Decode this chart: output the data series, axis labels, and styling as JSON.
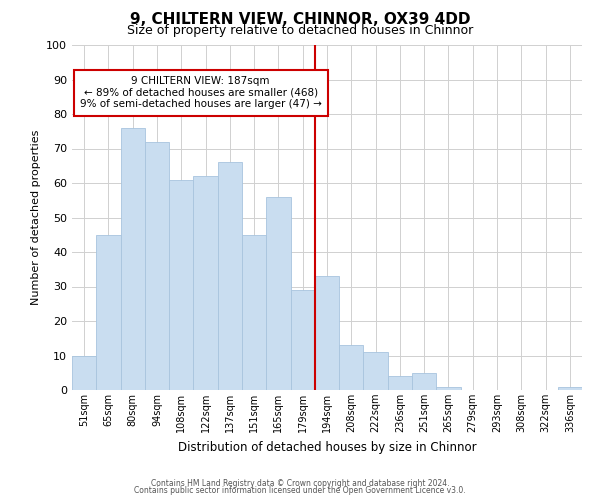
{
  "title": "9, CHILTERN VIEW, CHINNOR, OX39 4DD",
  "subtitle": "Size of property relative to detached houses in Chinnor",
  "xlabel": "Distribution of detached houses by size in Chinnor",
  "ylabel": "Number of detached properties",
  "categories": [
    "51sqm",
    "65sqm",
    "80sqm",
    "94sqm",
    "108sqm",
    "122sqm",
    "137sqm",
    "151sqm",
    "165sqm",
    "179sqm",
    "194sqm",
    "208sqm",
    "222sqm",
    "236sqm",
    "251sqm",
    "265sqm",
    "279sqm",
    "293sqm",
    "308sqm",
    "322sqm",
    "336sqm"
  ],
  "values": [
    10,
    45,
    76,
    72,
    61,
    62,
    66,
    45,
    56,
    29,
    33,
    13,
    11,
    4,
    5,
    1,
    0,
    0,
    0,
    0,
    1
  ],
  "bar_color": "#c9ddf0",
  "bar_edge_color": "#a8c4de",
  "vline_x_index": 9.5,
  "vline_color": "#cc0000",
  "annotation_title": "9 CHILTERN VIEW: 187sqm",
  "annotation_line1": "← 89% of detached houses are smaller (468)",
  "annotation_line2": "9% of semi-detached houses are larger (47) →",
  "annotation_box_color": "#ffffff",
  "annotation_box_edge": "#cc0000",
  "ylim": [
    0,
    100
  ],
  "footnote1": "Contains HM Land Registry data © Crown copyright and database right 2024.",
  "footnote2": "Contains public sector information licensed under the Open Government Licence v3.0.",
  "background_color": "#ffffff",
  "grid_color": "#d0d0d0"
}
